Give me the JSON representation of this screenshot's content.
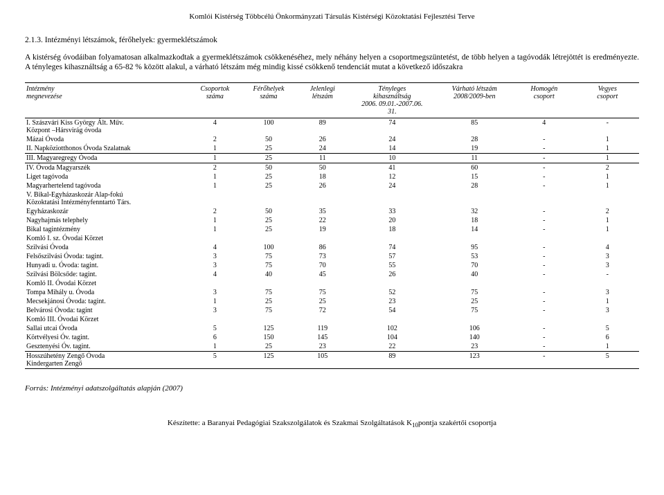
{
  "header": "Komlói Kistérség Többcélú Önkormányzati Társulás Kistérségi Közoktatási Fejlesztési Terve",
  "section_number": "2.1.3. Intézményi létszámok, férőhelyek: gyermeklétszámok",
  "intro": "A kistérség óvodáiban folyamatosan alkalmazkodtak a gyermeklétszámok csökkenéséhez, mely néhány helyen a csoportmegszüntetést, de több helyen a tagóvodák létrejöttét is eredményezte. A tényleges kihasználtság a 65-82 % között alakul, a várható létszám még mindig kissé csökkenő tendenciát mutat a következő időszakra",
  "columns": [
    "Intézmény\nmegnevezése",
    "Csoportok\nszáma",
    "Férőhelyek\nszáma",
    "Jelenlegi\nlétszám",
    "Tényleges\nkihasználtság\n2006. 09.01.-2007.06.\n31.",
    "Várható létszám\n2008/2009-ben",
    "Homogén\ncsoport",
    "Vegyes\ncsoport"
  ],
  "groups": [
    {
      "rows": [
        {
          "name": "I.  Szászvári  Kiss  György  Ált.  Műv.\nKözpont –Hársvirág óvoda",
          "v": [
            "4",
            "100",
            "89",
            "74",
            "85",
            "4",
            "-"
          ]
        },
        {
          "name": "Mázai Óvoda",
          "v": [
            "2",
            "50",
            "26",
            "24",
            "28",
            "-",
            "1"
          ]
        },
        {
          "name": "II. Napköziotthonos Óvoda Szalatnak",
          "v": [
            "1",
            "25",
            "24",
            "14",
            "19",
            "-",
            "1"
          ]
        }
      ]
    },
    {
      "rows": [
        {
          "name": "III. Magyaregregy Óvoda",
          "v": [
            "1",
            "25",
            "11",
            "10",
            "11",
            "-",
            "1"
          ]
        }
      ]
    },
    {
      "rows": [
        {
          "name": "IV. Óvoda Magyarszék",
          "v": [
            "2",
            "50",
            "50",
            "41",
            "60",
            "-",
            "2"
          ]
        },
        {
          "name": "Liget tagóvoda",
          "v": [
            "1",
            "25",
            "18",
            "12",
            "15",
            "-",
            "1"
          ]
        },
        {
          "name": "Magyarhertelend tagóvoda",
          "v": [
            "1",
            "25",
            "26",
            "24",
            "28",
            "-",
            "1"
          ]
        },
        {
          "name": "V.   Bikal-Egyházaskozár   Alap-fokú\nKözoktatási Intézményfenntartó Társ.",
          "v": [
            "",
            "",
            "",
            "",
            "",
            "",
            ""
          ]
        },
        {
          "name": "Egyházaskozár",
          "v": [
            "2",
            "50",
            "35",
            "33",
            "32",
            "-",
            "2"
          ]
        },
        {
          "name": "Nagyhajmás telephely",
          "v": [
            "1",
            "25",
            "22",
            "20",
            "18",
            "-",
            "1"
          ]
        },
        {
          "name": "Bikal tagintézmény",
          "v": [
            "1",
            "25",
            "19",
            "18",
            "14",
            "-",
            "1"
          ]
        },
        {
          "name": "Komló I. sz. Óvodai Körzet",
          "v": [
            "",
            "",
            "",
            "",
            "",
            "",
            ""
          ]
        },
        {
          "name": "Szilvási Óvoda",
          "v": [
            "4",
            "100",
            "86",
            "74",
            "95",
            "-",
            "4"
          ]
        },
        {
          "name": "Felsőszilvási Óvoda: tagint.",
          "v": [
            "3",
            "75",
            "73",
            "57",
            "53",
            "-",
            "3"
          ]
        },
        {
          "name": "Hunyadi u. Óvoda: tagint.",
          "v": [
            "3",
            "75",
            "70",
            "55",
            "70",
            "-",
            "3"
          ]
        },
        {
          "name": "Szilvási Bölcsőde: tagint.",
          "v": [
            "4",
            "40",
            "45",
            "26",
            "40",
            "-",
            "-"
          ]
        },
        {
          "name": "Komló II. Óvodai Körzet",
          "v": [
            "",
            "",
            "",
            "",
            "",
            "",
            ""
          ]
        },
        {
          "name": "Tompa Mihály u. Óvoda",
          "v": [
            "3",
            "75",
            "75",
            "52",
            "75",
            "-",
            "3"
          ]
        },
        {
          "name": "Mecsekjánosi Óvoda: tagint.",
          "v": [
            "1",
            "25",
            "25",
            "23",
            "25",
            "-",
            "1"
          ]
        },
        {
          "name": "Belvárosi Óvoda: tagint",
          "v": [
            "3",
            "75",
            "72",
            "54",
            "75",
            "-",
            "3"
          ]
        },
        {
          "name": "Komló III. Óvodai Körzet",
          "v": [
            "",
            "",
            "",
            "",
            "",
            "",
            ""
          ]
        },
        {
          "name": "Sallai utcai Óvoda",
          "v": [
            "5",
            "125",
            "119",
            "102",
            "106",
            "-",
            "5"
          ]
        },
        {
          "name": "Körtvélyesi Óv. tagint.",
          "v": [
            "6",
            "150",
            "145",
            "104",
            "140",
            "-",
            "6"
          ]
        },
        {
          "name": "Gesztenyési Óv. tagint.",
          "v": [
            "1",
            "25",
            "23",
            "22",
            "23",
            "-",
            "1"
          ]
        }
      ]
    },
    {
      "rows": [
        {
          "name": "Hosszúhetény Zengő Óvoda\nKindergarten Zengő",
          "v": [
            "5",
            "125",
            "105",
            "89",
            "123",
            "-",
            "5"
          ]
        }
      ]
    }
  ],
  "source": "Forrás: Intézményi adatszolgáltatás alapján (2007)",
  "footer_prefix": "Készítette: a Baranyai Pedagógiai Szakszolgálatok és Szakmai Szolgáltatások K",
  "footer_page": "10",
  "footer_suffix": "pontja szakértői csoportja",
  "colors": {
    "text": "#000000",
    "background": "#ffffff",
    "border": "#000000"
  },
  "typography": {
    "body_family": "Times New Roman",
    "body_size_pt": 9,
    "header_size_pt": 9
  }
}
